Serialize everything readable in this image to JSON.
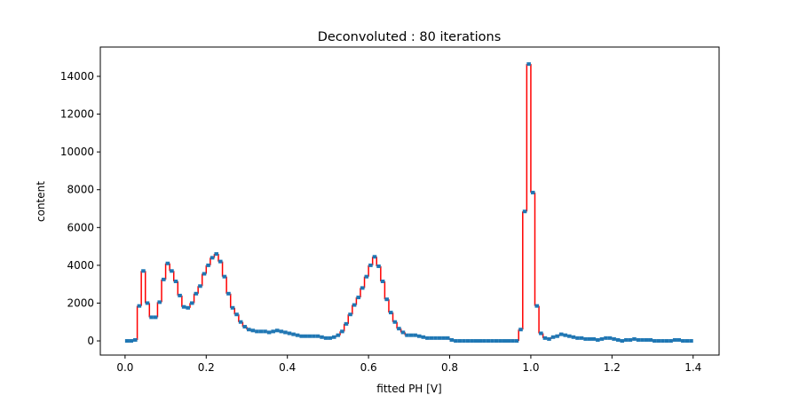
{
  "chart_data": {
    "type": "step_histogram",
    "title": "Deconvoluted : 80 iterations",
    "x_label": "fitted PH [V]",
    "y_label": "content",
    "bins": [
      0,
      0.01,
      0.02,
      0.03,
      0.04,
      0.05,
      0.06,
      0.07,
      0.08,
      0.09,
      0.1,
      0.11,
      0.12,
      0.13,
      0.14,
      0.15,
      0.16,
      0.17,
      0.18,
      0.19,
      0.2,
      0.21,
      0.22,
      0.23,
      0.24,
      0.25,
      0.26,
      0.27,
      0.28,
      0.29,
      0.3,
      0.31,
      0.32,
      0.33,
      0.34,
      0.35,
      0.36,
      0.37,
      0.38,
      0.39,
      0.4,
      0.41,
      0.42,
      0.43,
      0.44,
      0.45,
      0.46,
      0.47,
      0.48,
      0.49,
      0.5,
      0.51,
      0.52,
      0.53,
      0.54,
      0.55,
      0.56,
      0.57,
      0.58,
      0.59,
      0.6,
      0.61,
      0.62,
      0.63,
      0.64,
      0.65,
      0.66,
      0.67,
      0.68,
      0.69,
      0.7,
      0.71,
      0.72,
      0.73,
      0.74,
      0.75,
      0.76,
      0.77,
      0.78,
      0.79,
      0.8,
      0.81,
      0.82,
      0.83,
      0.84,
      0.85,
      0.86,
      0.87,
      0.88,
      0.89,
      0.9,
      0.91,
      0.92,
      0.93,
      0.94,
      0.95,
      0.96,
      0.97,
      0.98,
      0.99,
      1,
      1.01,
      1.02,
      1.03,
      1.04,
      1.05,
      1.06,
      1.07,
      1.08,
      1.09,
      1.1,
      1.11,
      1.12,
      1.13,
      1.14,
      1.15,
      1.16,
      1.17,
      1.18,
      1.19,
      1.2,
      1.21,
      1.22,
      1.23,
      1.24,
      1.25,
      1.26,
      1.27,
      1.28,
      1.29,
      1.3,
      1.31,
      1.32,
      1.33,
      1.34,
      1.35,
      1.36,
      1.37,
      1.38,
      1.39,
      1.4
    ],
    "values": [
      0,
      0,
      50,
      1850,
      3700,
      2000,
      1250,
      1250,
      2050,
      3250,
      4100,
      3700,
      3150,
      2400,
      1800,
      1750,
      2000,
      2500,
      2900,
      3550,
      4000,
      4400,
      4600,
      4200,
      3400,
      2500,
      1750,
      1400,
      1000,
      750,
      600,
      550,
      500,
      500,
      500,
      450,
      500,
      550,
      500,
      450,
      400,
      350,
      300,
      250,
      250,
      250,
      250,
      250,
      200,
      150,
      150,
      200,
      300,
      500,
      900,
      1400,
      1900,
      2300,
      2800,
      3400,
      4000,
      4450,
      3950,
      3150,
      2200,
      1500,
      1000,
      650,
      450,
      300,
      300,
      300,
      250,
      200,
      150,
      150,
      150,
      150,
      150,
      150,
      50,
      0,
      0,
      0,
      0,
      0,
      0,
      0,
      0,
      0,
      0,
      0,
      0,
      0,
      0,
      0,
      0,
      600,
      6850,
      14650,
      7850,
      1850,
      400,
      150,
      100,
      200,
      250,
      350,
      300,
      250,
      200,
      150,
      150,
      100,
      100,
      100,
      50,
      100,
      150,
      150,
      100,
      50,
      0,
      50,
      50,
      100,
      50,
      50,
      50,
      50,
      0,
      0,
      0,
      0,
      0,
      50,
      50,
      0,
      0,
      0
    ],
    "color": "#1f77b4",
    "step_color": "#ff0000",
    "xlim": [
      -0.061,
      1.464
    ],
    "ylim": [
      -750,
      15550
    ],
    "xticks": [
      {
        "value": 0,
        "label": "0.0"
      },
      0.2,
      0.4,
      0.6,
      0.8,
      {
        "value": 1,
        "label": "1.0"
      },
      1.2,
      1.4
    ],
    "yticks": [
      0,
      2000,
      4000,
      6000,
      8000,
      10000,
      12000,
      14000
    ]
  }
}
